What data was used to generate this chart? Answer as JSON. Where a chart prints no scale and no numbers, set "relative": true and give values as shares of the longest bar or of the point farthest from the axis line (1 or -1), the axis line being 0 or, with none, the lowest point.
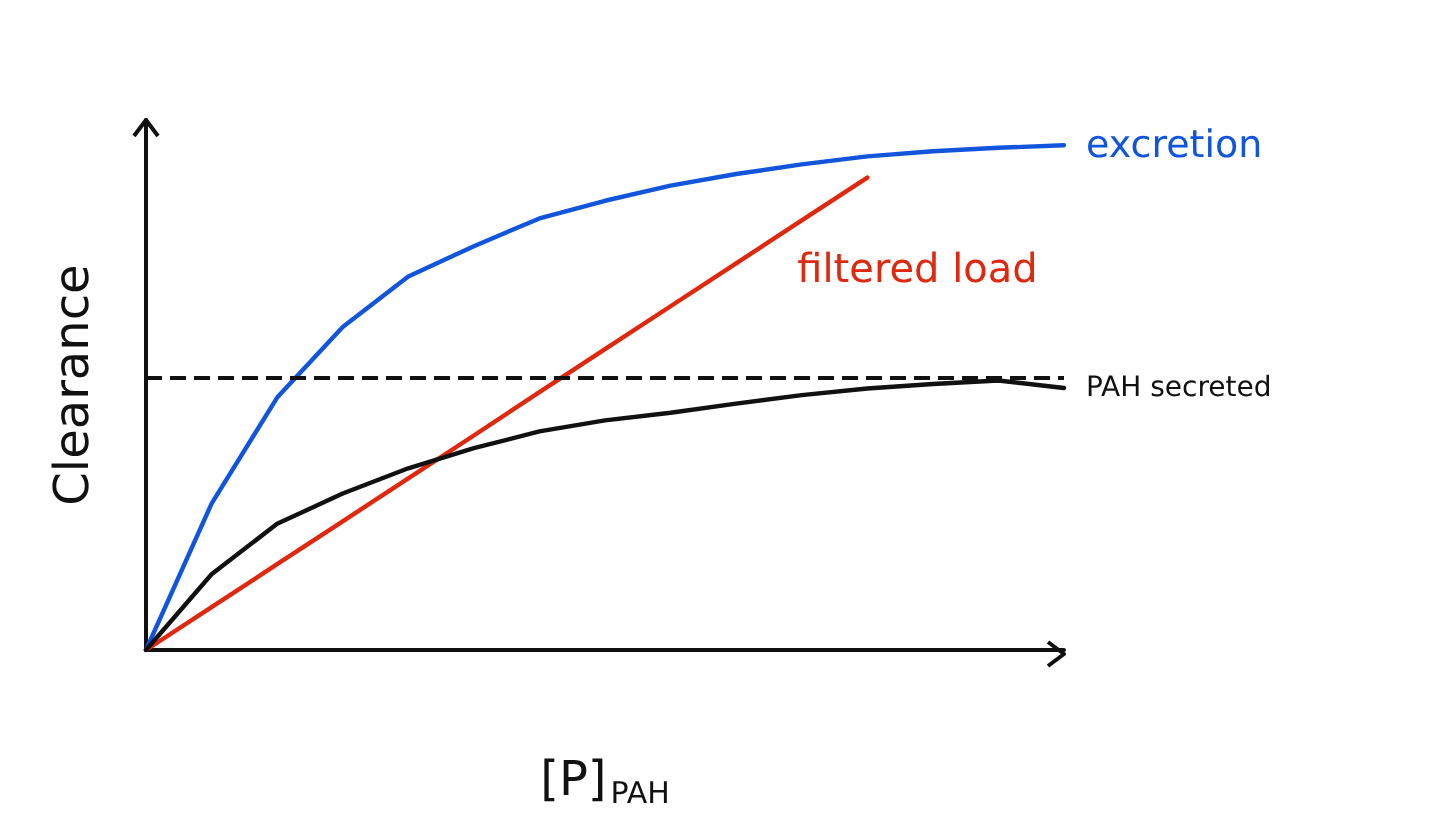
{
  "chart_data": {
    "type": "line",
    "relative": true,
    "xlabel": "[P]$_{PAH}$",
    "ylabel": "Clearance",
    "legend": false,
    "grid": false,
    "marker": "none",
    "line_style": "solid",
    "categories": [
      null,
      null,
      null,
      null,
      null,
      null,
      null,
      null,
      null,
      null,
      null,
      null,
      null,
      null,
      null
    ],
    "series": [
      {
        "name": "excretion",
        "color": "#1155dd",
        "values": [
          0,
          0.29,
          0.5,
          0.64,
          0.74,
          0.8,
          0.855,
          0.89,
          0.92,
          0.943,
          0.962,
          0.978,
          0.988,
          0.995,
          1
        ]
      },
      {
        "name": "filtered load",
        "color": "#e0280f",
        "values": [
          0,
          0.085,
          0.17,
          0.255,
          0.34,
          0.425,
          0.511,
          0.596,
          0.681,
          0.766,
          0.851,
          0.936,
          null,
          null,
          null
        ]
      },
      {
        "name": "PAH secreted",
        "color": "#111111",
        "values": [
          0,
          0.15,
          0.25,
          0.31,
          0.36,
          0.4,
          0.433,
          0.455,
          0.47,
          0.488,
          0.505,
          0.518,
          0.527,
          0.534,
          0.519
        ]
      }
    ],
    "ref_lines": [
      {
        "axis": "y",
        "value": 0.544,
        "color": "#111111",
        "line_style": "dashed"
      }
    ]
  }
}
